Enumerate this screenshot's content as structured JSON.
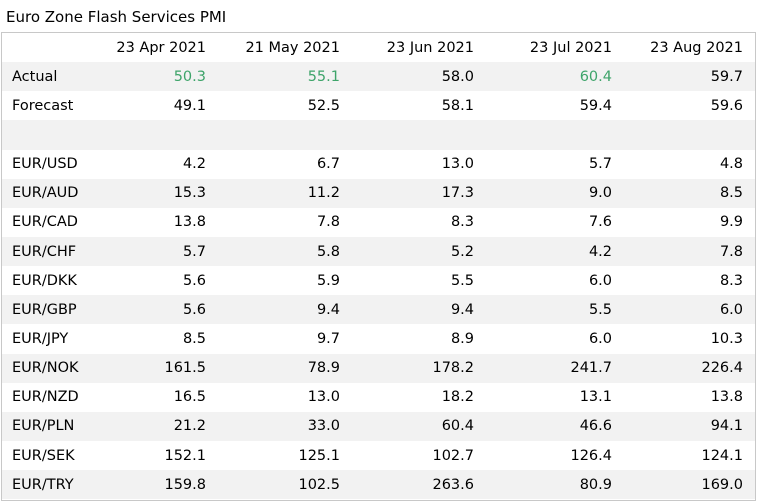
{
  "title": "Euro Zone Flash Services PMI",
  "colors": {
    "beat": "#3ea46a",
    "row_shade": "#f2f2f2",
    "border": "#c8c8c8"
  },
  "columns": [
    "23 Apr 2021",
    "21 May 2021",
    "23 Jun 2021",
    "23 Jul 2021",
    "23 Aug 2021"
  ],
  "pmi": {
    "actual": {
      "label": "Actual",
      "values": [
        "50.3",
        "55.1",
        "58.0",
        "60.4",
        "59.7"
      ],
      "beat_forecast": [
        true,
        true,
        false,
        true,
        false
      ]
    },
    "forecast": {
      "label": "Forecast",
      "values": [
        "49.1",
        "52.5",
        "58.1",
        "59.4",
        "59.6"
      ]
    }
  },
  "pairs": [
    {
      "label": "EUR/USD",
      "values": [
        "4.2",
        "6.7",
        "13.0",
        "5.7",
        "4.8"
      ]
    },
    {
      "label": "EUR/AUD",
      "values": [
        "15.3",
        "11.2",
        "17.3",
        "9.0",
        "8.5"
      ]
    },
    {
      "label": "EUR/CAD",
      "values": [
        "13.8",
        "7.8",
        "8.3",
        "7.6",
        "9.9"
      ]
    },
    {
      "label": "EUR/CHF",
      "values": [
        "5.7",
        "5.8",
        "5.2",
        "4.2",
        "7.8"
      ]
    },
    {
      "label": "EUR/DKK",
      "values": [
        "5.6",
        "5.9",
        "5.5",
        "6.0",
        "8.3"
      ]
    },
    {
      "label": "EUR/GBP",
      "values": [
        "5.6",
        "9.4",
        "9.4",
        "5.5",
        "6.0"
      ]
    },
    {
      "label": "EUR/JPY",
      "values": [
        "8.5",
        "9.7",
        "8.9",
        "6.0",
        "10.3"
      ]
    },
    {
      "label": "EUR/NOK",
      "values": [
        "161.5",
        "78.9",
        "178.2",
        "241.7",
        "226.4"
      ]
    },
    {
      "label": "EUR/NZD",
      "values": [
        "16.5",
        "13.0",
        "18.2",
        "13.1",
        "13.8"
      ]
    },
    {
      "label": "EUR/PLN",
      "values": [
        "21.2",
        "33.0",
        "60.4",
        "46.6",
        "94.1"
      ]
    },
    {
      "label": "EUR/SEK",
      "values": [
        "152.1",
        "125.1",
        "102.7",
        "126.4",
        "124.1"
      ]
    },
    {
      "label": "EUR/TRY",
      "values": [
        "159.8",
        "102.5",
        "263.6",
        "80.9",
        "169.0"
      ]
    }
  ]
}
